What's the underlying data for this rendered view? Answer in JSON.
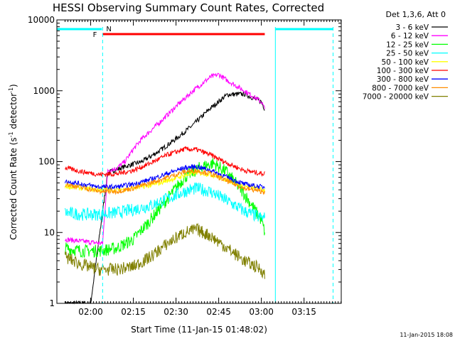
{
  "chart_data": {
    "type": "line",
    "title": "HESSI Observing Summary Count Rates, Corrected",
    "xlabel": "Start Time (11-Jan-15 01:48:02)",
    "ylabel_main": "Corrected Count Rate (s",
    "ylabel_exp1": "-1",
    "ylabel_mid": " detector",
    "ylabel_exp2": "-1",
    "ylabel_end": ")",
    "ylim": [
      1,
      10000
    ],
    "yscale": "log",
    "xlim": [
      1.802,
      3.468
    ],
    "x_unit": "hours (UT)",
    "x_ticks": [
      {
        "value": 2.0,
        "label": "02:00"
      },
      {
        "value": 2.25,
        "label": "02:15"
      },
      {
        "value": 2.5,
        "label": "02:30"
      },
      {
        "value": 2.75,
        "label": "02:45"
      },
      {
        "value": 3.0,
        "label": "03:00"
      },
      {
        "value": 3.25,
        "label": "03:15"
      }
    ],
    "y_ticks": [
      {
        "value": 1,
        "label": "1"
      },
      {
        "value": 10,
        "label": "10"
      },
      {
        "value": 100,
        "label": "100"
      },
      {
        "value": 1000,
        "label": "1000"
      },
      {
        "value": 10000,
        "label": "10000"
      }
    ],
    "legend_title": "Det 1,3,6, Att 0",
    "legend_position": "right-outside",
    "series": [
      {
        "name": "3 - 6 keV",
        "color": "#000000",
        "x": [
          1.85,
          2.0,
          2.1,
          2.2,
          2.3,
          2.4,
          2.5,
          2.6,
          2.7,
          2.8,
          2.9,
          3.0,
          3.02
        ],
        "values": [
          1,
          1,
          70,
          85,
          100,
          140,
          210,
          330,
          560,
          880,
          900,
          700,
          550
        ]
      },
      {
        "name": "6 - 12 keV",
        "color": "#ff00ff",
        "x": [
          1.85,
          1.95,
          2.07,
          2.1,
          2.15,
          2.2,
          2.25,
          2.3,
          2.4,
          2.5,
          2.6,
          2.7,
          2.75,
          2.8,
          2.9,
          3.0,
          3.02
        ],
        "values": [
          8,
          7.5,
          7,
          75,
          80,
          100,
          150,
          210,
          350,
          600,
          1000,
          1550,
          1700,
          1400,
          1000,
          700,
          550
        ]
      },
      {
        "name": "12 - 25 keV",
        "color": "#00ff00",
        "x": [
          1.85,
          1.95,
          2.05,
          2.15,
          2.25,
          2.35,
          2.45,
          2.55,
          2.65,
          2.72,
          2.8,
          2.9,
          3.0,
          3.02
        ],
        "values": [
          6,
          5.5,
          5.5,
          6,
          8,
          15,
          30,
          60,
          85,
          95,
          70,
          35,
          15,
          10
        ]
      },
      {
        "name": "25 - 50 keV",
        "color": "#00ffff",
        "x": [
          1.85,
          1.95,
          2.05,
          2.15,
          2.25,
          2.35,
          2.45,
          2.55,
          2.62,
          2.7,
          2.8,
          2.9,
          3.0,
          3.02
        ],
        "values": [
          19,
          18,
          18,
          19,
          21,
          24,
          30,
          38,
          42,
          38,
          28,
          20,
          16,
          16
        ]
      },
      {
        "name": "50 - 100 keV",
        "color": "#ffff00",
        "x": [
          1.85,
          1.95,
          2.05,
          2.15,
          2.25,
          2.35,
          2.45,
          2.55,
          2.62,
          2.7,
          2.8,
          2.9,
          3.0,
          3.02
        ],
        "values": [
          45,
          42,
          40,
          40,
          42,
          46,
          54,
          64,
          70,
          66,
          55,
          45,
          40,
          40
        ]
      },
      {
        "name": "100 - 300 keV",
        "color": "#ff0000",
        "x": [
          1.85,
          1.95,
          2.05,
          2.15,
          2.25,
          2.35,
          2.45,
          2.55,
          2.62,
          2.7,
          2.8,
          2.9,
          3.0,
          3.02
        ],
        "values": [
          82,
          72,
          66,
          67,
          75,
          95,
          125,
          150,
          148,
          125,
          95,
          75,
          68,
          68
        ]
      },
      {
        "name": "300 - 800 keV",
        "color": "#0000ff",
        "x": [
          1.85,
          1.95,
          2.05,
          2.15,
          2.25,
          2.35,
          2.45,
          2.55,
          2.62,
          2.7,
          2.8,
          2.9,
          3.0,
          3.02
        ],
        "values": [
          53,
          48,
          44,
          44,
          48,
          56,
          68,
          82,
          85,
          76,
          60,
          48,
          44,
          44
        ]
      },
      {
        "name": "800 - 7000 keV",
        "color": "#ff8c00",
        "x": [
          1.85,
          1.95,
          2.05,
          2.15,
          2.25,
          2.35,
          2.45,
          2.55,
          2.62,
          2.7,
          2.8,
          2.9,
          3.0,
          3.02
        ],
        "values": [
          48,
          43,
          38,
          38,
          42,
          50,
          60,
          72,
          75,
          68,
          53,
          42,
          38,
          38
        ]
      },
      {
        "name": "7000 - 20000 keV",
        "color": "#808000",
        "x": [
          1.85,
          1.95,
          2.05,
          2.15,
          2.25,
          2.35,
          2.45,
          2.55,
          2.62,
          2.7,
          2.8,
          2.9,
          3.0,
          3.02
        ],
        "values": [
          4.5,
          3.5,
          3,
          3,
          3.3,
          4.5,
          7,
          10,
          11,
          9,
          6,
          4,
          3,
          2.5
        ]
      }
    ],
    "flag_bars": [
      {
        "label": "",
        "color": "#00ffff",
        "x_start": 1.802,
        "x_end": 2.065
      },
      {
        "label": "",
        "color": "#00ffff",
        "x_start": 3.082,
        "x_end": 3.42
      }
    ],
    "flare_bar": {
      "color": "#ff0000",
      "x_start": 2.07,
      "x_end": 3.02
    },
    "bar_labels": {
      "flare": "F",
      "night": "N"
    },
    "vlines": [
      {
        "x": 2.07,
        "style": "dashed",
        "color": "#00ffff"
      },
      {
        "x": 3.082,
        "style": "solid",
        "color": "#00ffff"
      },
      {
        "x": 3.42,
        "style": "dashed",
        "color": "#00ffff"
      }
    ],
    "timestamp": "11-Jan-2015 18:08"
  }
}
